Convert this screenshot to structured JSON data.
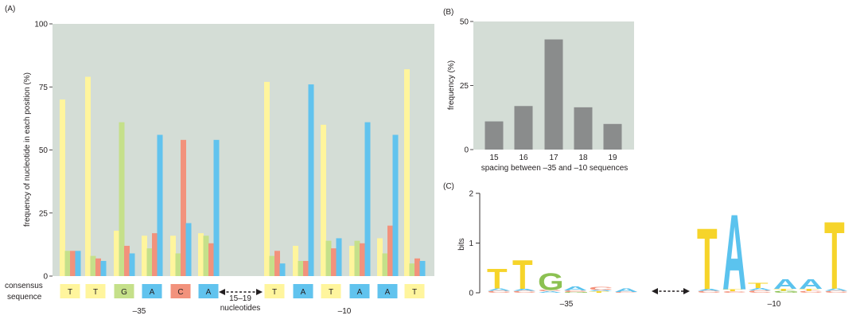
{
  "colors": {
    "T": "#fff59d",
    "G": "#c5e08a",
    "C": "#f2927c",
    "A": "#61c3ee",
    "panel_bg": "#d4ddd6",
    "bar_gray": "#8a8c8c",
    "logo_T": "#f6d42a",
    "logo_A": "#5bc3ee",
    "logo_G": "#8cc152",
    "logo_C": "#f4907a"
  },
  "panels": {
    "a_label": "(A)",
    "b_label": "(B)",
    "c_label": "(C)"
  },
  "sequence_labels": {
    "consensus_line1": "consensus",
    "consensus_line2": "sequence",
    "spacer_line1": "15–19",
    "spacer_line2": "nucleotides",
    "minus35": "–35",
    "minus10": "–10"
  },
  "chart_data": [
    {
      "type": "bar",
      "panel": "A",
      "ylabel": "frequency of nucleotide in each position (%)",
      "ylim": [
        0,
        100
      ],
      "yticks": [
        0,
        25,
        50,
        75,
        100
      ],
      "grid": false,
      "bar_order": [
        "T",
        "G",
        "C",
        "A"
      ],
      "positions": [
        {
          "consensus": "T",
          "region": "-35",
          "T": 70,
          "G": 10,
          "C": 10,
          "A": 10
        },
        {
          "consensus": "T",
          "region": "-35",
          "T": 79,
          "G": 8,
          "C": 7,
          "A": 6
        },
        {
          "consensus": "G",
          "region": "-35",
          "T": 18,
          "G": 61,
          "C": 12,
          "A": 9
        },
        {
          "consensus": "A",
          "region": "-35",
          "T": 16,
          "G": 11,
          "C": 17,
          "A": 56
        },
        {
          "consensus": "C",
          "region": "-35",
          "T": 16,
          "G": 9,
          "C": 54,
          "A": 21
        },
        {
          "consensus": "A",
          "region": "-35",
          "T": 17,
          "G": 16,
          "C": 13,
          "A": 54
        },
        {
          "consensus": "T",
          "region": "-10",
          "T": 77,
          "G": 8,
          "C": 10,
          "A": 5
        },
        {
          "consensus": "A",
          "region": "-10",
          "T": 12,
          "G": 6,
          "C": 6,
          "A": 76
        },
        {
          "consensus": "T",
          "region": "-10",
          "T": 60,
          "G": 14,
          "C": 11,
          "A": 15
        },
        {
          "consensus": "A",
          "region": "-10",
          "T": 12,
          "G": 14,
          "C": 13,
          "A": 61
        },
        {
          "consensus": "A",
          "region": "-10",
          "T": 15,
          "G": 9,
          "C": 20,
          "A": 56
        },
        {
          "consensus": "T",
          "region": "-10",
          "T": 82,
          "G": 5,
          "C": 7,
          "A": 6
        }
      ]
    },
    {
      "type": "bar",
      "panel": "B",
      "categories": [
        "15",
        "16",
        "17",
        "18",
        "19"
      ],
      "values": [
        11,
        17,
        43,
        16.5,
        10
      ],
      "xlabel": "spacing between –35 and –10 sequences",
      "ylabel": "frequency (%)",
      "ylim": [
        0,
        50
      ],
      "yticks": [
        0,
        25,
        50
      ],
      "grid": false
    },
    {
      "type": "sequence_logo",
      "panel": "C",
      "ylabel": "bits",
      "ylim": [
        0,
        2
      ],
      "yticks": [
        0,
        1,
        2
      ],
      "groups": [
        {
          "label": "–35",
          "columns": [
            {
              "letters": [
                {
                  "base": "C",
                  "bits": 0.04
                },
                {
                  "base": "A",
                  "bits": 0.05
                },
                {
                  "base": "T",
                  "bits": 0.4
                }
              ]
            },
            {
              "letters": [
                {
                  "base": "C",
                  "bits": 0.04
                },
                {
                  "base": "A",
                  "bits": 0.04
                },
                {
                  "base": "T",
                  "bits": 0.6
                }
              ]
            },
            {
              "letters": [
                {
                  "base": "A",
                  "bits": 0.03
                },
                {
                  "base": "C",
                  "bits": 0.03
                },
                {
                  "base": "G",
                  "bits": 0.35
                }
              ]
            },
            {
              "letters": [
                {
                  "base": "G",
                  "bits": 0.02
                },
                {
                  "base": "C",
                  "bits": 0.03
                },
                {
                  "base": "A",
                  "bits": 0.08
                }
              ]
            },
            {
              "letters": [
                {
                  "base": "T",
                  "bits": 0.03
                },
                {
                  "base": "A",
                  "bits": 0.03
                },
                {
                  "base": "C",
                  "bits": 0.06
                }
              ]
            },
            {
              "letters": [
                {
                  "base": "C",
                  "bits": 0.02
                },
                {
                  "base": "A",
                  "bits": 0.07
                }
              ]
            }
          ]
        },
        {
          "label": "–10",
          "columns": [
            {
              "letters": [
                {
                  "base": "C",
                  "bits": 0.04
                },
                {
                  "base": "A",
                  "bits": 0.04
                },
                {
                  "base": "T",
                  "bits": 1.25
                }
              ]
            },
            {
              "letters": [
                {
                  "base": "C",
                  "bits": 0.03
                },
                {
                  "base": "T",
                  "bits": 0.04
                },
                {
                  "base": "A",
                  "bits": 1.55
                }
              ]
            },
            {
              "letters": [
                {
                  "base": "C",
                  "bits": 0.05
                },
                {
                  "base": "A",
                  "bits": 0.05
                },
                {
                  "base": "T",
                  "bits": 0.1
                }
              ]
            },
            {
              "letters": [
                {
                  "base": "G",
                  "bits": 0.04
                },
                {
                  "base": "T",
                  "bits": 0.04
                },
                {
                  "base": "A",
                  "bits": 0.2
                }
              ]
            },
            {
              "letters": [
                {
                  "base": "C",
                  "bits": 0.04
                },
                {
                  "base": "T",
                  "bits": 0.04
                },
                {
                  "base": "A",
                  "bits": 0.2
                }
              ]
            },
            {
              "letters": [
                {
                  "base": "C",
                  "bits": 0.04
                },
                {
                  "base": "A",
                  "bits": 0.05
                },
                {
                  "base": "T",
                  "bits": 1.38
                }
              ]
            }
          ]
        }
      ]
    }
  ]
}
